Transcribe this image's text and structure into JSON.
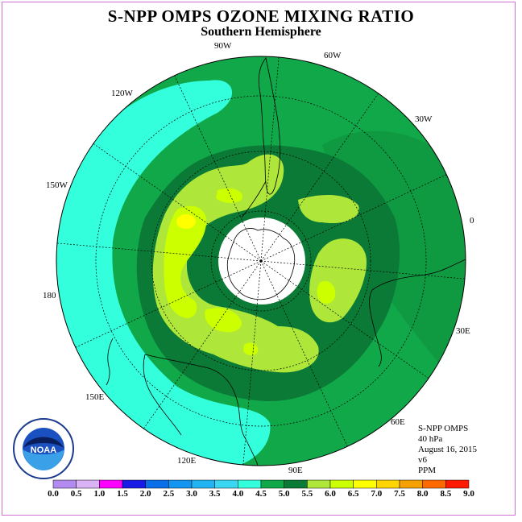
{
  "title": "S-NPP OMPS OZONE MIXING RATIO",
  "subtitle": "Southern Hemisphere",
  "longitude_labels": [
    "90W",
    "60W",
    "30W",
    "120W",
    "150W",
    "0",
    "180",
    "30E",
    "150E",
    "60E",
    "120E",
    "90E"
  ],
  "info": {
    "instrument": "S-NPP OMPS",
    "pressure": "40 hPa",
    "date": "August 16, 2015",
    "version": "v6",
    "units": "PPM"
  },
  "logo_text": "NOAA",
  "colorbar": {
    "ticks": [
      "0.0",
      "0.5",
      "1.0",
      "1.5",
      "2.0",
      "2.5",
      "3.0",
      "3.5",
      "4.0",
      "4.5",
      "5.0",
      "5.5",
      "6.0",
      "6.5",
      "7.0",
      "7.5",
      "8.0",
      "8.5",
      "9.0"
    ],
    "colors": [
      "#b38bf0",
      "#d9b3f5",
      "#ff00ff",
      "#1a1ae6",
      "#0a6fe8",
      "#1496f0",
      "#22b4f2",
      "#3ad6f2",
      "#33ffdd",
      "#11a84a",
      "#0b7a36",
      "#aee63a",
      "#ccff00",
      "#ffff00",
      "#ffd500",
      "#f5a100",
      "#ff6a00",
      "#ff1a00",
      "#8b5a3c"
    ]
  },
  "colors": {
    "cyan_band": "#33ffdd",
    "green_4_5": "#11a84a",
    "green_4_5b": "#0f9a42",
    "dark_green": "#0b7a36",
    "lime": "#aee63a",
    "yellow_green": "#ccff00",
    "yellow": "#ffff00",
    "polar_hole": "#ffffff"
  }
}
